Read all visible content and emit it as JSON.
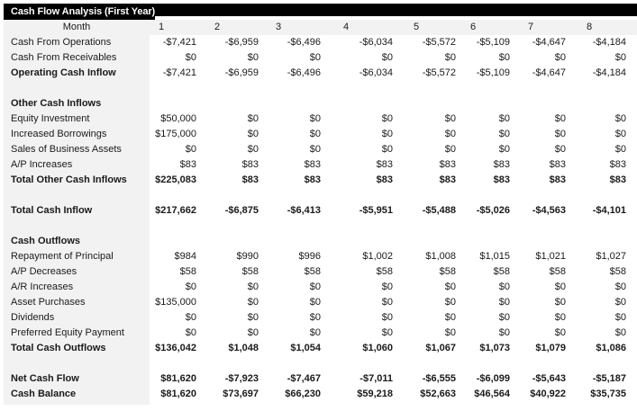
{
  "title": "Cash Flow Analysis (First Year)",
  "header": {
    "label": "Month",
    "months": [
      "1",
      "2",
      "3",
      "4",
      "5",
      "6",
      "7",
      "8"
    ]
  },
  "colors": {
    "title_bg": "#000000",
    "title_fg": "#ffffff",
    "label_bg": "#f2f2f2",
    "data_bg": "#ffffff"
  },
  "rows": [
    {
      "label": "Cash From Operations",
      "bold_label": false,
      "bold_values": false,
      "values": [
        "-$7,421",
        "-$6,959",
        "-$6,496",
        "-$6,034",
        "-$5,572",
        "-$5,109",
        "-$4,647",
        "-$4,184"
      ]
    },
    {
      "label": "Cash From Receivables",
      "bold_label": false,
      "bold_values": false,
      "values": [
        "$0",
        "$0",
        "$0",
        "$0",
        "$0",
        "$0",
        "$0",
        "$0"
      ]
    },
    {
      "label": "Operating Cash Inflow",
      "bold_label": true,
      "bold_values": false,
      "values": [
        "-$7,421",
        "-$6,959",
        "-$6,496",
        "-$6,034",
        "-$5,572",
        "-$5,109",
        "-$4,647",
        "-$4,184"
      ]
    },
    {
      "label": "Other Cash Inflows",
      "bold_label": true,
      "bold_values": false,
      "values": [
        "",
        "",
        "",
        "",
        "",
        "",
        "",
        ""
      ]
    },
    {
      "label": "Equity Investment",
      "bold_label": false,
      "bold_values": false,
      "values": [
        "$50,000",
        "$0",
        "$0",
        "$0",
        "$0",
        "$0",
        "$0",
        "$0"
      ]
    },
    {
      "label": "Increased Borrowings",
      "bold_label": false,
      "bold_values": false,
      "values": [
        "$175,000",
        "$0",
        "$0",
        "$0",
        "$0",
        "$0",
        "$0",
        "$0"
      ]
    },
    {
      "label": "Sales of Business Assets",
      "bold_label": false,
      "bold_values": false,
      "values": [
        "$0",
        "$0",
        "$0",
        "$0",
        "$0",
        "$0",
        "$0",
        "$0"
      ]
    },
    {
      "label": "A/P Increases",
      "bold_label": false,
      "bold_values": false,
      "values": [
        "$83",
        "$83",
        "$83",
        "$83",
        "$83",
        "$83",
        "$83",
        "$83"
      ]
    },
    {
      "label": "Total Other Cash Inflows",
      "bold_label": true,
      "bold_values": true,
      "values": [
        "$225,083",
        "$83",
        "$83",
        "$83",
        "$83",
        "$83",
        "$83",
        "$83"
      ]
    },
    {
      "label": "Total Cash Inflow",
      "bold_label": true,
      "bold_values": true,
      "values": [
        "$217,662",
        "-$6,875",
        "-$6,413",
        "-$5,951",
        "-$5,488",
        "-$5,026",
        "-$4,563",
        "-$4,101"
      ]
    },
    {
      "label": "Cash Outflows",
      "bold_label": true,
      "bold_values": false,
      "values": [
        "",
        "",
        "",
        "",
        "",
        "",
        "",
        ""
      ]
    },
    {
      "label": "Repayment of Principal",
      "bold_label": false,
      "bold_values": false,
      "values": [
        "$984",
        "$990",
        "$996",
        "$1,002",
        "$1,008",
        "$1,015",
        "$1,021",
        "$1,027"
      ]
    },
    {
      "label": "A/P Decreases",
      "bold_label": false,
      "bold_values": false,
      "values": [
        "$58",
        "$58",
        "$58",
        "$58",
        "$58",
        "$58",
        "$58",
        "$58"
      ]
    },
    {
      "label": "A/R Increases",
      "bold_label": false,
      "bold_values": false,
      "values": [
        "$0",
        "$0",
        "$0",
        "$0",
        "$0",
        "$0",
        "$0",
        "$0"
      ]
    },
    {
      "label": "Asset Purchases",
      "bold_label": false,
      "bold_values": false,
      "values": [
        "$135,000",
        "$0",
        "$0",
        "$0",
        "$0",
        "$0",
        "$0",
        "$0"
      ]
    },
    {
      "label": "Dividends",
      "bold_label": false,
      "bold_values": false,
      "values": [
        "$0",
        "$0",
        "$0",
        "$0",
        "$0",
        "$0",
        "$0",
        "$0"
      ]
    },
    {
      "label": "Preferred Equity Payment",
      "bold_label": false,
      "bold_values": false,
      "values": [
        "$0",
        "$0",
        "$0",
        "$0",
        "$0",
        "$0",
        "$0",
        "$0"
      ]
    },
    {
      "label": "Total Cash Outflows",
      "bold_label": true,
      "bold_values": true,
      "values": [
        "$136,042",
        "$1,048",
        "$1,054",
        "$1,060",
        "$1,067",
        "$1,073",
        "$1,079",
        "$1,086"
      ]
    },
    {
      "label": "Net Cash Flow",
      "bold_label": true,
      "bold_values": true,
      "values": [
        "$81,620",
        "-$7,923",
        "-$7,467",
        "-$7,011",
        "-$6,555",
        "-$6,099",
        "-$5,643",
        "-$5,187"
      ]
    },
    {
      "label": "Cash Balance",
      "bold_label": true,
      "bold_values": true,
      "values": [
        "$81,620",
        "$73,697",
        "$66,230",
        "$59,218",
        "$52,663",
        "$46,564",
        "$40,922",
        "$35,735"
      ]
    }
  ]
}
